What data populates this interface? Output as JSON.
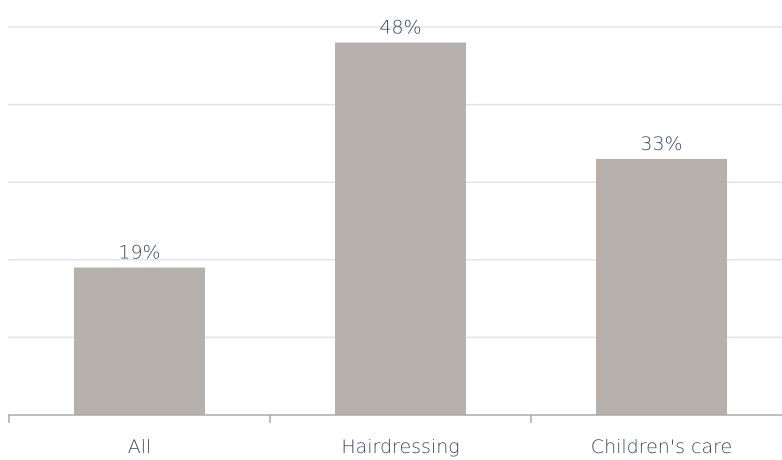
{
  "chart_data": {
    "type": "bar",
    "categories": [
      "All",
      "Hairdressing",
      "Children's care"
    ],
    "values": [
      19,
      48,
      33
    ],
    "data_labels": [
      "19%",
      "48%",
      "33%"
    ],
    "title": "",
    "xlabel": "",
    "ylabel": "",
    "ylim": [
      0,
      50
    ],
    "grid": true,
    "legend": "none",
    "colors": {
      "bar": "#b7b1ae",
      "gridline": "#e3e3ea",
      "axis": "#a9a9a9",
      "text": "#3d4a5c"
    }
  }
}
